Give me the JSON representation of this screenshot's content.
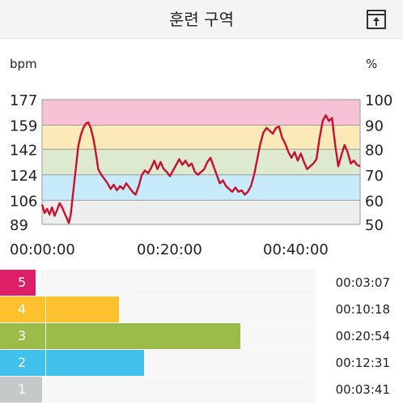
{
  "header": {
    "title": "훈련 구역",
    "export_icon": "export-icon"
  },
  "chart_data": {
    "type": "line",
    "y_left_label": "bpm",
    "y_right_label": "%",
    "y_left_ticks": [
      177,
      159,
      142,
      124,
      106,
      89
    ],
    "y_right_ticks": [
      100,
      90,
      80,
      70,
      60,
      50
    ],
    "x_ticks": [
      "00:00:00",
      "00:20:00",
      "00:40:00"
    ],
    "ylim": [
      89,
      177
    ],
    "xlim_minutes": [
      0,
      51
    ],
    "bands": [
      {
        "from": 159,
        "to": 177,
        "color": "#f7c2d6"
      },
      {
        "from": 142,
        "to": 159,
        "color": "#fbeab8"
      },
      {
        "from": 124,
        "to": 142,
        "color": "#deead0"
      },
      {
        "from": 106,
        "to": 124,
        "color": "#c7ebfb"
      },
      {
        "from": 89,
        "to": 106,
        "color": "#eeeeee"
      }
    ],
    "series": [
      {
        "color": "#c8102e",
        "points": [
          [
            0,
            103
          ],
          [
            0.4,
            97
          ],
          [
            0.8,
            100
          ],
          [
            1.2,
            96
          ],
          [
            1.6,
            101
          ],
          [
            2.0,
            95
          ],
          [
            2.4,
            99
          ],
          [
            2.8,
            104
          ],
          [
            3.2,
            101
          ],
          [
            3.6,
            97
          ],
          [
            4.0,
            93
          ],
          [
            4.3,
            90
          ],
          [
            4.6,
            96
          ],
          [
            5.0,
            112
          ],
          [
            5.4,
            128
          ],
          [
            5.8,
            144
          ],
          [
            6.2,
            152
          ],
          [
            6.6,
            157
          ],
          [
            7.0,
            160
          ],
          [
            7.4,
            161
          ],
          [
            7.8,
            157
          ],
          [
            8.2,
            150
          ],
          [
            8.6,
            140
          ],
          [
            9.0,
            128
          ],
          [
            9.5,
            124
          ],
          [
            10,
            121
          ],
          [
            10.5,
            118
          ],
          [
            11,
            114
          ],
          [
            11.5,
            117
          ],
          [
            12,
            113
          ],
          [
            12.5,
            116
          ],
          [
            13,
            114
          ],
          [
            13.5,
            118
          ],
          [
            14,
            115
          ],
          [
            14.5,
            112
          ],
          [
            15,
            110
          ],
          [
            15.5,
            116
          ],
          [
            16,
            124
          ],
          [
            16.5,
            127
          ],
          [
            17,
            125
          ],
          [
            17.5,
            129
          ],
          [
            18,
            134
          ],
          [
            18.5,
            128
          ],
          [
            19,
            133
          ],
          [
            19.5,
            128
          ],
          [
            20,
            126
          ],
          [
            20.5,
            123
          ],
          [
            21,
            127
          ],
          [
            21.5,
            131
          ],
          [
            22,
            135
          ],
          [
            22.5,
            131
          ],
          [
            23,
            134
          ],
          [
            23.5,
            130
          ],
          [
            24,
            132
          ],
          [
            24.5,
            126
          ],
          [
            25,
            124
          ],
          [
            25.5,
            126
          ],
          [
            26,
            128
          ],
          [
            26.5,
            133
          ],
          [
            27,
            136
          ],
          [
            27.5,
            130
          ],
          [
            28,
            124
          ],
          [
            28.5,
            118
          ],
          [
            29,
            120
          ],
          [
            29.5,
            116
          ],
          [
            30,
            114
          ],
          [
            30.5,
            112
          ],
          [
            31,
            115
          ],
          [
            31.5,
            112
          ],
          [
            32,
            113
          ],
          [
            32.5,
            110
          ],
          [
            33,
            112
          ],
          [
            33.5,
            116
          ],
          [
            34,
            124
          ],
          [
            34.5,
            135
          ],
          [
            35,
            146
          ],
          [
            35.5,
            154
          ],
          [
            36,
            157
          ],
          [
            36.5,
            155
          ],
          [
            37,
            153
          ],
          [
            37.5,
            157
          ],
          [
            38,
            158
          ],
          [
            38.5,
            150
          ],
          [
            39,
            146
          ],
          [
            39.5,
            140
          ],
          [
            40,
            136
          ],
          [
            40.5,
            140
          ],
          [
            41,
            134
          ],
          [
            41.5,
            139
          ],
          [
            42,
            133
          ],
          [
            42.5,
            128
          ],
          [
            43,
            130
          ],
          [
            43.5,
            132
          ],
          [
            44,
            135
          ],
          [
            44.5,
            150
          ],
          [
            45,
            162
          ],
          [
            45.5,
            166
          ],
          [
            46,
            162
          ],
          [
            46.5,
            164
          ],
          [
            47,
            145
          ],
          [
            47.5,
            130
          ],
          [
            48,
            138
          ],
          [
            48.5,
            145
          ],
          [
            49,
            140
          ],
          [
            49.5,
            132
          ],
          [
            50,
            134
          ],
          [
            50.5,
            131
          ],
          [
            51,
            130
          ]
        ]
      }
    ]
  },
  "zones": [
    {
      "number": "5",
      "time": "00:03:07",
      "color": "#dc1f66",
      "minutes": 3.12
    },
    {
      "number": "4",
      "time": "00:10:18",
      "color": "#fec12e",
      "minutes": 10.3
    },
    {
      "number": "3",
      "time": "00:20:54",
      "color": "#9cbc4a",
      "minutes": 20.9
    },
    {
      "number": "2",
      "time": "00:12:31",
      "color": "#3fc1ec",
      "minutes": 12.52
    },
    {
      "number": "1",
      "time": "00:03:41",
      "color": "#c5c9ca",
      "minutes": 3.68
    }
  ]
}
